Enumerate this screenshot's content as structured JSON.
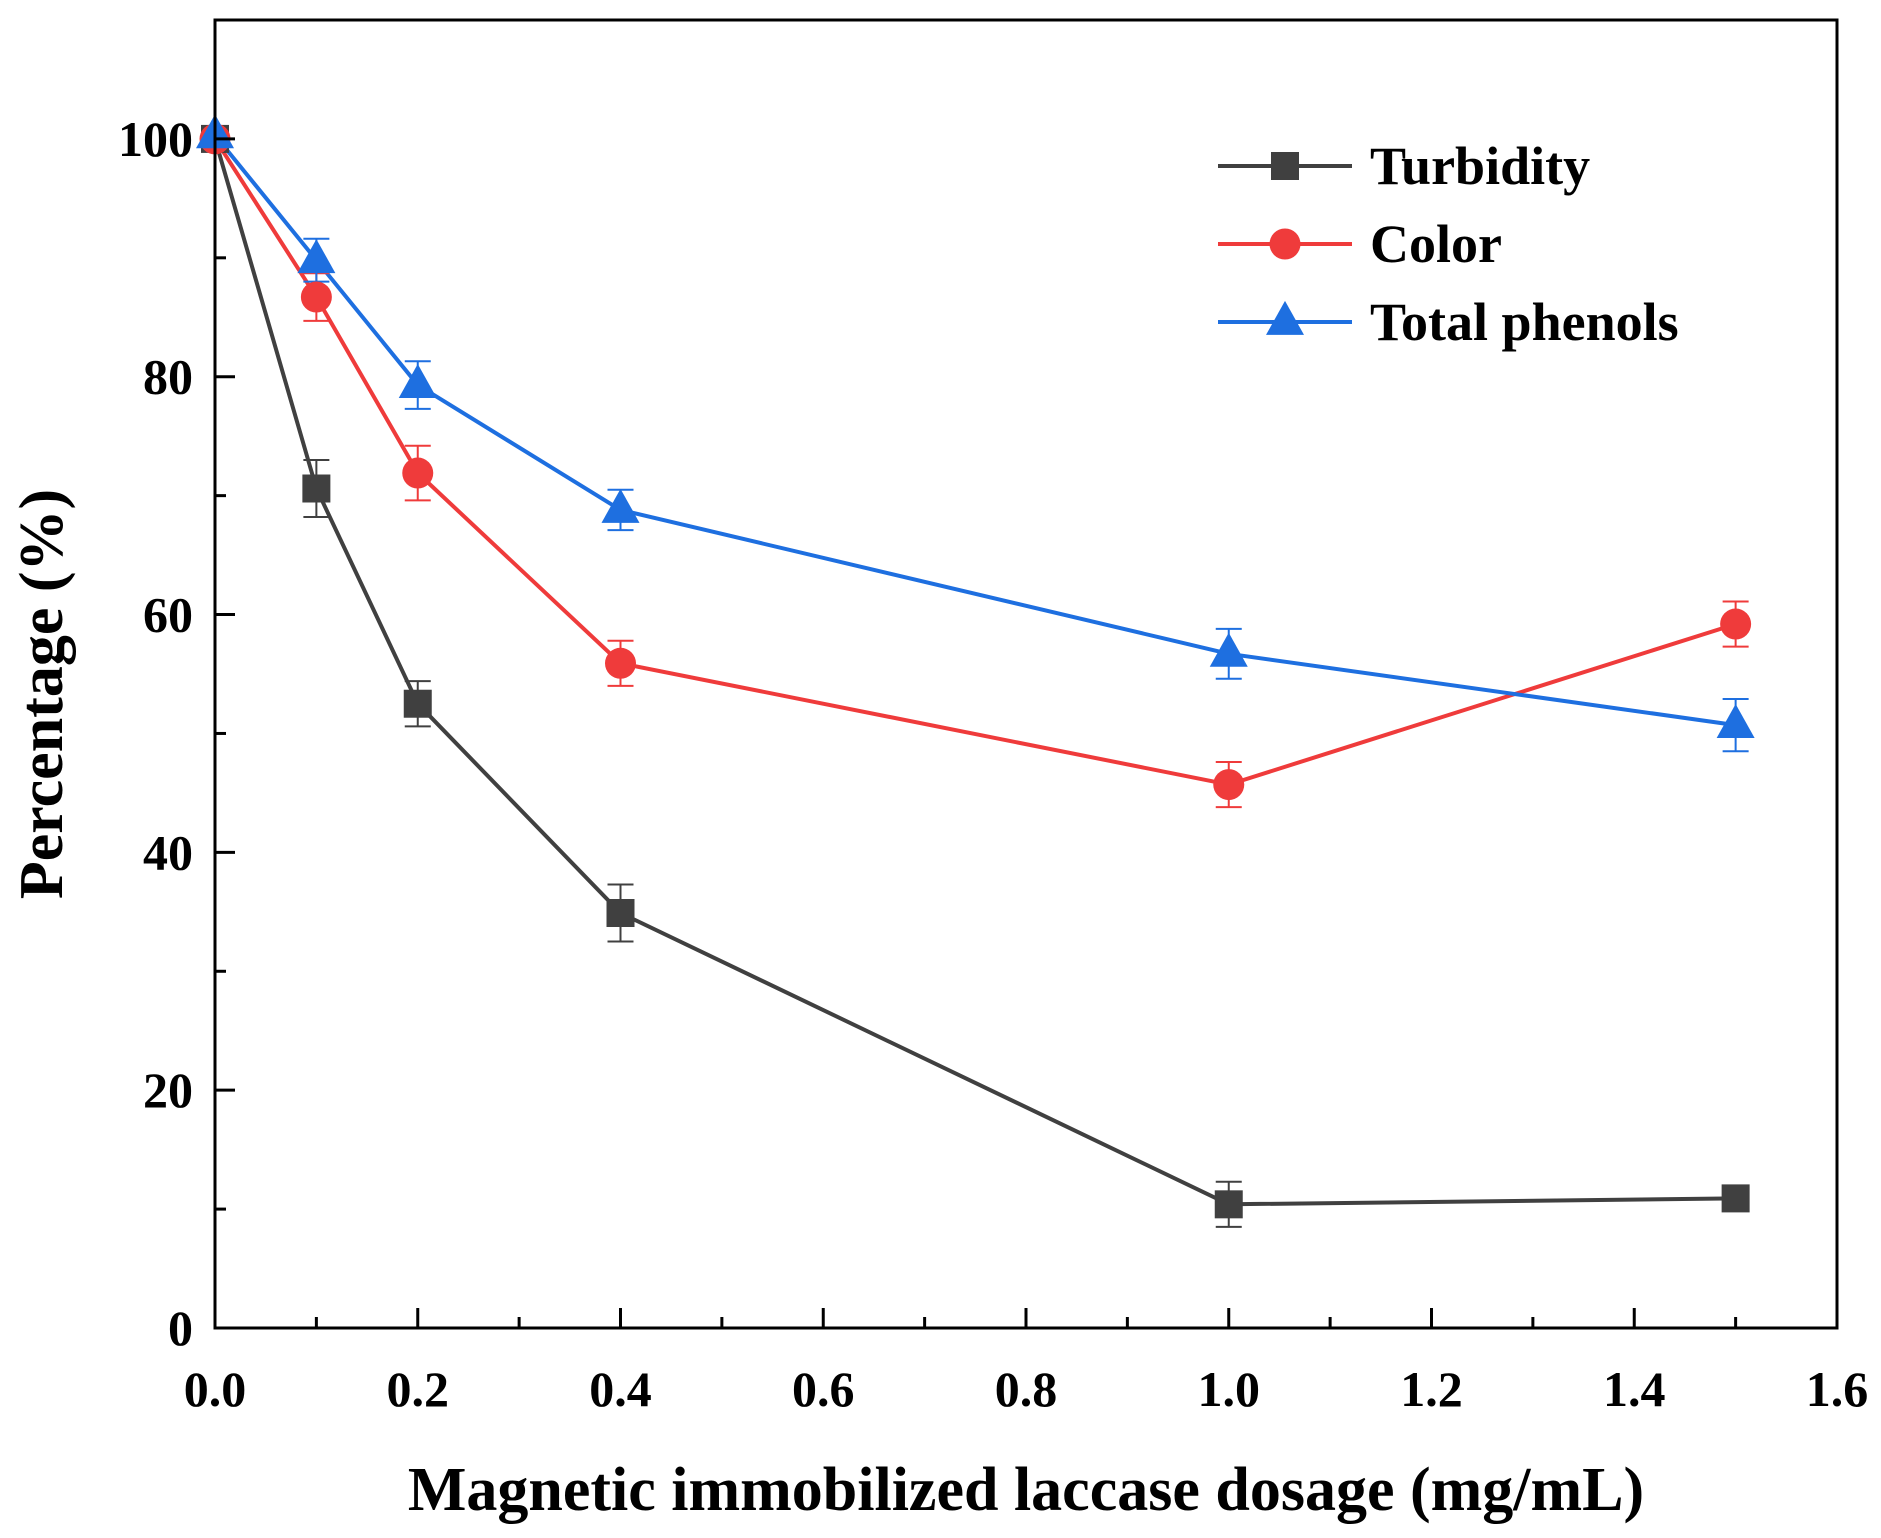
{
  "chart_data": {
    "type": "line",
    "title": "",
    "xlabel": "Magnetic immobilized laccase dosage (mg/mL)",
    "ylabel": "Percentage (%)",
    "xlim": [
      0,
      1.6
    ],
    "ylim": [
      0,
      110
    ],
    "x_ticks": [
      0.0,
      0.2,
      0.4,
      0.6,
      0.8,
      1.0,
      1.2,
      1.4,
      1.6
    ],
    "x_tick_labels": [
      "0.0",
      "0.2",
      "0.4",
      "0.6",
      "0.8",
      "1.0",
      "1.2",
      "1.4",
      "1.6"
    ],
    "x_minor_ticks": [
      0.1,
      0.3,
      0.5,
      0.7,
      0.9,
      1.1,
      1.3,
      1.5
    ],
    "y_ticks": [
      0,
      20,
      40,
      60,
      80,
      100
    ],
    "y_tick_labels": [
      "0",
      "20",
      "40",
      "60",
      "80",
      "100"
    ],
    "y_minor_ticks": [
      10,
      30,
      50,
      70,
      90
    ],
    "grid": false,
    "legend_position": "top-right",
    "x": [
      0.0,
      0.1,
      0.2,
      0.4,
      1.0,
      1.5
    ],
    "series": [
      {
        "name": "Turbidity",
        "marker": "square",
        "color": "#404040",
        "values": [
          100.0,
          70.6,
          52.5,
          34.9,
          10.4,
          10.9
        ],
        "errors": [
          0.0,
          2.4,
          1.9,
          2.4,
          1.9,
          0.8
        ]
      },
      {
        "name": "Color",
        "marker": "circle",
        "color": "#ef3b3b",
        "values": [
          100.0,
          86.7,
          71.9,
          55.9,
          45.7,
          59.2
        ],
        "errors": [
          0.0,
          2.0,
          2.3,
          1.9,
          1.9,
          1.9
        ]
      },
      {
        "name": "Total phenols",
        "marker": "triangle",
        "color": "#1e6fe0",
        "values": [
          100.3,
          89.8,
          79.3,
          68.8,
          56.7,
          50.7
        ],
        "errors": [
          0.0,
          1.8,
          2.0,
          1.7,
          2.1,
          2.2
        ]
      }
    ]
  }
}
